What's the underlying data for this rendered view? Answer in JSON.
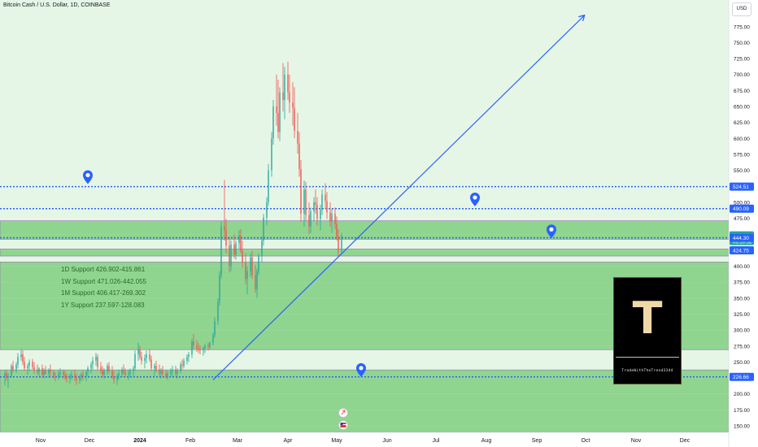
{
  "header": {
    "symbol_title": "Bitcoin Cash / U.S. Dollar, 1D, COINBASE",
    "currency": "USD"
  },
  "annotations": {
    "supports": [
      "1D Support 426.902-415.861",
      "1W Support 471.026-442.055",
      "1M Support 406.417-269.302",
      "1Y Support 237.597-128.083"
    ]
  },
  "logo": {
    "letter": "T",
    "caption": "TradeWithTheTrend3344"
  },
  "colors": {
    "zone_green": "#8fd48f",
    "zone_light": "#e6f6e6",
    "up_candle": "#26a69a",
    "down_candle": "#ef5350",
    "hline_blue": "#2962ff",
    "trendline_blue": "#2962ff",
    "price_tag_green": "#26a69a"
  },
  "chart_data": {
    "type": "candlestick",
    "title": "Bitcoin Cash / U.S. Dollar, 1D, COINBASE",
    "ylim": [
      145,
      800
    ],
    "y_ticks": [
      150,
      175,
      200,
      225,
      250,
      275,
      300,
      325,
      350,
      375,
      400,
      425,
      450,
      475,
      500,
      525,
      550,
      575,
      600,
      625,
      650,
      675,
      700,
      725,
      750,
      775
    ],
    "x_ticks": [
      {
        "label": "Nov",
        "date": "2023-11-01"
      },
      {
        "label": "Dec",
        "date": "2023-12-01"
      },
      {
        "label": "2024",
        "date": "2024-01-01"
      },
      {
        "label": "Feb",
        "date": "2024-02-01"
      },
      {
        "label": "Mar",
        "date": "2024-03-01"
      },
      {
        "label": "Apr",
        "date": "2024-04-01"
      },
      {
        "label": "May",
        "date": "2024-05-01"
      },
      {
        "label": "Jun",
        "date": "2024-06-01"
      },
      {
        "label": "Jul",
        "date": "2024-07-01"
      },
      {
        "label": "Aug",
        "date": "2024-08-01"
      },
      {
        "label": "Sep",
        "date": "2024-09-01"
      },
      {
        "label": "Oct",
        "date": "2024-10-01"
      },
      {
        "label": "Nov",
        "date": "2024-11-01"
      },
      {
        "label": "Dec",
        "date": "2024-12-01"
      }
    ],
    "x_start": "2023-10-10",
    "x_end": "2024-12-31",
    "zones": [
      {
        "from": 442.055,
        "to": 471.026,
        "label": "1W Support"
      },
      {
        "from": 415.861,
        "to": 426.902,
        "label": "1D Support"
      },
      {
        "from": 269.302,
        "to": 406.417,
        "label": "1M Support"
      },
      {
        "from": 128.083,
        "to": 237.597,
        "label": "1Y Support"
      }
    ],
    "horizontal_lines": [
      524.51,
      490.09,
      444.3,
      226.66
    ],
    "price_labels": [
      {
        "value": 524.51,
        "text": "524.51",
        "style": "blue"
      },
      {
        "value": 490.09,
        "text": "490.09",
        "style": "blue"
      },
      {
        "value": 448.19,
        "text": "448.19",
        "style": "green",
        "sub": "06:19:52"
      },
      {
        "value": 444.3,
        "text": "444.30",
        "style": "blue"
      },
      {
        "value": 424.75,
        "text": "424.75",
        "style": "blue"
      },
      {
        "value": 226.66,
        "text": "226.66",
        "style": "blue"
      }
    ],
    "trendline": {
      "start": {
        "date": "2024-02-15",
        "value": 222
      },
      "end": {
        "date": "2024-09-30",
        "value": 792
      }
    },
    "markers": [
      {
        "date": "2023-11-30",
        "value": 540,
        "kind": "pin"
      },
      {
        "date": "2024-07-25",
        "value": 505,
        "kind": "pin"
      },
      {
        "date": "2024-09-10",
        "value": 455,
        "kind": "pin"
      },
      {
        "date": "2024-05-16",
        "value": 238,
        "kind": "pin"
      }
    ],
    "events": [
      {
        "date": "2024-05-05",
        "kind": "dividend-event"
      },
      {
        "date": "2024-05-05",
        "kind": "us-flag-event"
      }
    ],
    "candles": [
      [
        228,
        236,
        214,
        232
      ],
      [
        232,
        238,
        220,
        225
      ],
      [
        225,
        233,
        210,
        228
      ],
      [
        228,
        247,
        226,
        244
      ],
      [
        244,
        252,
        234,
        238
      ],
      [
        238,
        250,
        233,
        246
      ],
      [
        246,
        264,
        240,
        258
      ],
      [
        258,
        270,
        252,
        262
      ],
      [
        262,
        268,
        245,
        250
      ],
      [
        250,
        258,
        236,
        240
      ],
      [
        240,
        248,
        230,
        244
      ],
      [
        244,
        254,
        236,
        250
      ],
      [
        250,
        255,
        238,
        242
      ],
      [
        242,
        250,
        232,
        238
      ],
      [
        238,
        246,
        230,
        235
      ],
      [
        235,
        242,
        228,
        240
      ],
      [
        240,
        246,
        226,
        230
      ],
      [
        230,
        240,
        224,
        236
      ],
      [
        236,
        244,
        230,
        232
      ],
      [
        232,
        240,
        225,
        238
      ],
      [
        238,
        246,
        228,
        234
      ],
      [
        234,
        238,
        224,
        228
      ],
      [
        228,
        234,
        220,
        226
      ],
      [
        226,
        236,
        222,
        232
      ],
      [
        232,
        240,
        226,
        234
      ],
      [
        234,
        238,
        224,
        230
      ],
      [
        230,
        236,
        222,
        228
      ],
      [
        228,
        232,
        218,
        224
      ],
      [
        224,
        232,
        216,
        228
      ],
      [
        228,
        236,
        222,
        230
      ],
      [
        230,
        238,
        220,
        226
      ],
      [
        226,
        232,
        214,
        222
      ],
      [
        222,
        230,
        216,
        226
      ],
      [
        226,
        234,
        220,
        230
      ],
      [
        230,
        236,
        222,
        228
      ],
      [
        228,
        236,
        220,
        234
      ],
      [
        234,
        244,
        228,
        240
      ],
      [
        240,
        250,
        232,
        246
      ],
      [
        246,
        258,
        238,
        252
      ],
      [
        252,
        264,
        244,
        258
      ],
      [
        258,
        262,
        238,
        242
      ],
      [
        242,
        250,
        232,
        238
      ],
      [
        238,
        244,
        226,
        230
      ],
      [
        230,
        240,
        224,
        236
      ],
      [
        236,
        248,
        230,
        244
      ],
      [
        244,
        250,
        232,
        236
      ],
      [
        236,
        244,
        224,
        228
      ],
      [
        228,
        236,
        216,
        222
      ],
      [
        222,
        232,
        214,
        228
      ],
      [
        228,
        238,
        222,
        232
      ],
      [
        232,
        242,
        226,
        238
      ],
      [
        238,
        246,
        230,
        234
      ],
      [
        234,
        240,
        226,
        230
      ],
      [
        230,
        238,
        222,
        232
      ],
      [
        232,
        240,
        226,
        236
      ],
      [
        236,
        244,
        228,
        240
      ],
      [
        240,
        268,
        236,
        262
      ],
      [
        262,
        280,
        252,
        270
      ],
      [
        270,
        276,
        254,
        258
      ],
      [
        258,
        266,
        246,
        252
      ],
      [
        252,
        262,
        240,
        256
      ],
      [
        256,
        268,
        248,
        262
      ],
      [
        262,
        270,
        250,
        254
      ],
      [
        254,
        260,
        236,
        240
      ],
      [
        240,
        248,
        228,
        244
      ],
      [
        244,
        252,
        234,
        238
      ],
      [
        238,
        246,
        228,
        232
      ],
      [
        232,
        240,
        224,
        236
      ],
      [
        236,
        244,
        228,
        232
      ],
      [
        232,
        238,
        224,
        228
      ],
      [
        228,
        236,
        222,
        232
      ],
      [
        232,
        240,
        226,
        236
      ],
      [
        236,
        244,
        228,
        238
      ],
      [
        238,
        244,
        228,
        232
      ],
      [
        232,
        240,
        224,
        236
      ],
      [
        236,
        250,
        232,
        246
      ],
      [
        246,
        254,
        238,
        244
      ],
      [
        244,
        256,
        240,
        252
      ],
      [
        252,
        262,
        246,
        258
      ],
      [
        258,
        266,
        250,
        262
      ],
      [
        262,
        286,
        256,
        282
      ],
      [
        282,
        294,
        270,
        276
      ],
      [
        276,
        284,
        266,
        272
      ],
      [
        272,
        280,
        264,
        270
      ],
      [
        270,
        276,
        262,
        268
      ],
      [
        268,
        274,
        260,
        272
      ],
      [
        272,
        278,
        264,
        276
      ],
      [
        276,
        280,
        268,
        274
      ],
      [
        274,
        282,
        270,
        280
      ],
      [
        280,
        296,
        276,
        292
      ],
      [
        292,
        320,
        288,
        314
      ],
      [
        314,
        350,
        308,
        344
      ],
      [
        344,
        392,
        338,
        386
      ],
      [
        386,
        470,
        380,
        462
      ],
      [
        462,
        535,
        440,
        456
      ],
      [
        456,
        474,
        420,
        432
      ],
      [
        432,
        446,
        390,
        400
      ],
      [
        400,
        440,
        392,
        434
      ],
      [
        434,
        450,
        412,
        418
      ],
      [
        418,
        440,
        410,
        436
      ],
      [
        436,
        456,
        426,
        448
      ],
      [
        448,
        458,
        420,
        424
      ],
      [
        424,
        440,
        398,
        406
      ],
      [
        406,
        420,
        372,
        380
      ],
      [
        380,
        400,
        356,
        392
      ],
      [
        392,
        420,
        384,
        414
      ],
      [
        414,
        424,
        380,
        386
      ],
      [
        386,
        402,
        358,
        364
      ],
      [
        364,
        396,
        350,
        392
      ],
      [
        392,
        420,
        386,
        416
      ],
      [
        416,
        446,
        406,
        440
      ],
      [
        440,
        482,
        432,
        476
      ],
      [
        476,
        508,
        464,
        500
      ],
      [
        500,
        560,
        494,
        550
      ],
      [
        550,
        610,
        540,
        600
      ],
      [
        600,
        660,
        590,
        650
      ],
      [
        650,
        700,
        620,
        640
      ],
      [
        640,
        692,
        600,
        610
      ],
      [
        610,
        680,
        596,
        672
      ],
      [
        672,
        718,
        642,
        660
      ],
      [
        660,
        712,
        630,
        700
      ],
      [
        700,
        720,
        660,
        672
      ],
      [
        672,
        700,
        640,
        656
      ],
      [
        656,
        688,
        620,
        648
      ],
      [
        648,
        680,
        600,
        612
      ],
      [
        612,
        640,
        576,
        592
      ],
      [
        592,
        610,
        540,
        552
      ],
      [
        552,
        566,
        470,
        482
      ],
      [
        482,
        534,
        462,
        520
      ],
      [
        520,
        532,
        470,
        480
      ],
      [
        480,
        500,
        450,
        462
      ],
      [
        462,
        492,
        452,
        486
      ],
      [
        486,
        508,
        470,
        500
      ],
      [
        500,
        520,
        482,
        496
      ],
      [
        496,
        508,
        464,
        474
      ],
      [
        474,
        496,
        456,
        488
      ],
      [
        488,
        520,
        480,
        512
      ],
      [
        512,
        530,
        490,
        502
      ],
      [
        502,
        516,
        474,
        484
      ],
      [
        484,
        500,
        462,
        470
      ],
      [
        470,
        490,
        452,
        482
      ],
      [
        482,
        492,
        458,
        466
      ],
      [
        466,
        478,
        440,
        446
      ],
      [
        446,
        458,
        415,
        424
      ],
      [
        424,
        452,
        420,
        448
      ]
    ]
  }
}
